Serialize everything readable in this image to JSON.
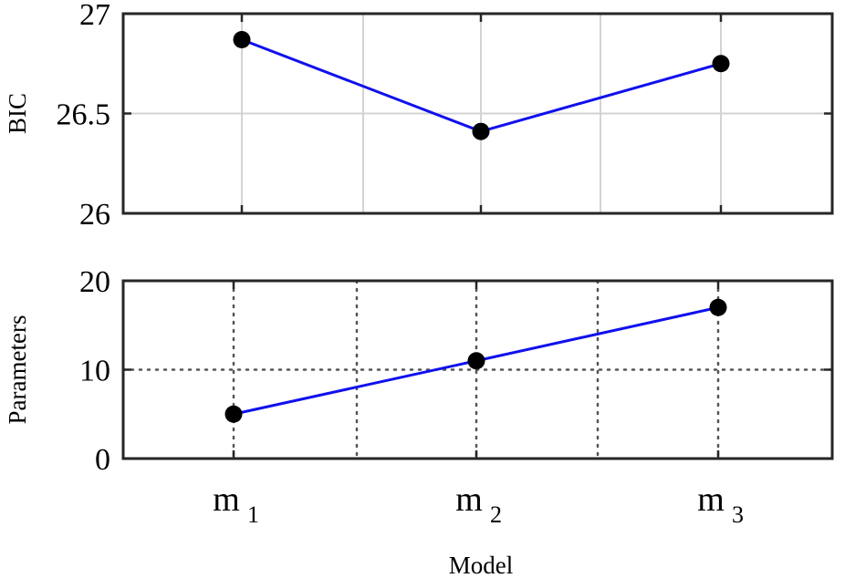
{
  "chart_data": [
    {
      "type": "line",
      "ylabel": "BIC",
      "ylim": [
        26,
        27
      ],
      "yticks": [
        26,
        26.5,
        27
      ],
      "ytick_labels": [
        "26",
        "26.5",
        "27"
      ],
      "grid": "solid",
      "categories": [
        {
          "base": "m",
          "sub": "1"
        },
        {
          "base": "m",
          "sub": "2"
        },
        {
          "base": "m",
          "sub": "3"
        }
      ],
      "series": [
        {
          "values": [
            26.87,
            26.41,
            26.75
          ],
          "color": "#1010ee"
        }
      ]
    },
    {
      "type": "line",
      "ylabel": "Parameters",
      "xlabel": "Model",
      "ylim": [
        0,
        20
      ],
      "yticks": [
        0,
        10,
        20
      ],
      "ytick_labels": [
        "0",
        "10",
        "20"
      ],
      "grid": "dotted",
      "categories": [
        {
          "base": "m",
          "sub": "1"
        },
        {
          "base": "m",
          "sub": "2"
        },
        {
          "base": "m",
          "sub": "3"
        }
      ],
      "series": [
        {
          "values": [
            5,
            11,
            17
          ],
          "color": "#1010ee"
        }
      ]
    }
  ],
  "colors": {
    "line": "#1010ee",
    "marker": "#000000",
    "grid": "#d3d3d3",
    "dotted_grid": "#555555"
  }
}
